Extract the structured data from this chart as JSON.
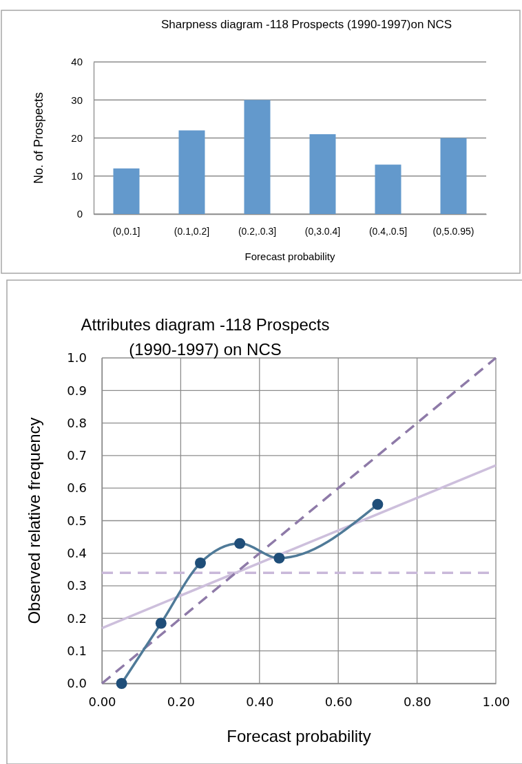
{
  "chart_data": [
    {
      "type": "bar",
      "title": "Sharpness diagram -118 Prospects (1990-1997)on NCS",
      "xlabel": "Forecast probability",
      "ylabel": "No. of Prospects",
      "categories": [
        "(0,0.1]",
        "(0.1,0.2]",
        "(0.2,.0.3]",
        "(0,3.0.4]",
        "(0.4,.0.5]",
        "(0,5.0.95)"
      ],
      "values": [
        12,
        22,
        30,
        21,
        13,
        20
      ],
      "color": "#6399cc",
      "ylim": [
        0,
        40
      ],
      "yticks": [
        0,
        10,
        20,
        30,
        40
      ],
      "grid": "y"
    },
    {
      "type": "line",
      "title": "Attributes diagram -118 Prospects (1990-1997) on NCS",
      "xlabel": "Forecast probability",
      "ylabel": "Observed relative frequency",
      "xlim": [
        0,
        1
      ],
      "ylim": [
        0,
        1
      ],
      "xticks": [
        {
          "value": 0,
          "label": "0.00"
        },
        {
          "value": 0.2,
          "label": "0.20"
        },
        {
          "value": 0.4,
          "label": "0.40"
        },
        {
          "value": 0.6,
          "label": "0.60"
        },
        {
          "value": 0.8,
          "label": "0.80"
        },
        {
          "value": 1,
          "label": "1.00"
        }
      ],
      "yticks": [
        {
          "value": 0,
          "label": "0.0"
        },
        {
          "value": 0.1,
          "label": "0.1"
        },
        {
          "value": 0.2,
          "label": "0.2"
        },
        {
          "value": 0.3,
          "label": "0.3"
        },
        {
          "value": 0.4,
          "label": "0.4"
        },
        {
          "value": 0.5,
          "label": "0.5"
        },
        {
          "value": 0.6,
          "label": "0.6"
        },
        {
          "value": 0.7,
          "label": "0.7"
        },
        {
          "value": 0.8,
          "label": "0.8"
        },
        {
          "value": 0.9,
          "label": "0.9"
        },
        {
          "value": 1,
          "label": "1.0"
        }
      ],
      "grid": true,
      "series": [
        {
          "x": [
            0,
            1
          ],
          "values": [
            0.17,
            0.67
          ],
          "color": "#cdbfdc",
          "line_style": "solid",
          "marker": "none"
        },
        {
          "x": [
            0,
            1
          ],
          "values": [
            0,
            1
          ],
          "color": "#8e7aa8",
          "line_style": "dashed",
          "marker": "none"
        },
        {
          "x": [
            0.05,
            0.15,
            0.25,
            0.35,
            0.45,
            0.7
          ],
          "values": [
            0,
            0.185,
            0.37,
            0.43,
            0.385,
            0.55
          ],
          "color": "#1f4e79",
          "line_style": "solid",
          "marker": "circle"
        }
      ],
      "ref_lines": [
        {
          "axis": "y",
          "value": 0.34,
          "color": "#c9b8d9",
          "line_style": "dashed"
        }
      ]
    }
  ]
}
